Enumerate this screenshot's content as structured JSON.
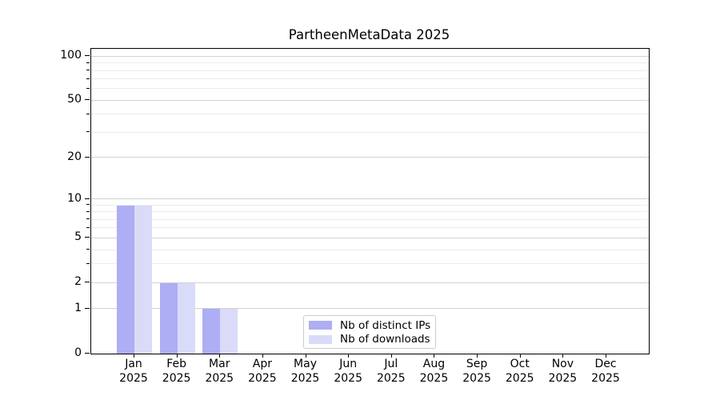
{
  "title": "PartheenMetaData 2025",
  "colors": {
    "distinct_ips": "#adaef4",
    "downloads": "#dadbf9",
    "grid_major": "#d2d2d2",
    "grid_minor": "#ececec",
    "axis": "#000000",
    "legend_border": "#cccccc"
  },
  "legend": {
    "items": [
      {
        "label": "Nb of distinct IPs",
        "color_key": "distinct_ips"
      },
      {
        "label": "Nb of downloads",
        "color_key": "downloads"
      }
    ]
  },
  "chart_data": {
    "type": "bar",
    "title": "PartheenMetaData 2025",
    "scale": "log1p",
    "grid": "both",
    "legend_position": "lower center",
    "year": "2025",
    "months": [
      "Jan",
      "Feb",
      "Mar",
      "Apr",
      "May",
      "Jun",
      "Jul",
      "Aug",
      "Sep",
      "Oct",
      "Nov",
      "Dec"
    ],
    "categories": [
      "Jan 2025",
      "Feb 2025",
      "Mar 2025",
      "Apr 2025",
      "May 2025",
      "Jun 2025",
      "Jul 2025",
      "Aug 2025",
      "Sep 2025",
      "Oct 2025",
      "Nov 2025",
      "Dec 2025"
    ],
    "series": [
      {
        "name": "Nb of distinct IPs",
        "color_key": "distinct_ips",
        "values": [
          9,
          2,
          1,
          0,
          0,
          0,
          0,
          0,
          0,
          0,
          0,
          0
        ]
      },
      {
        "name": "Nb of downloads",
        "color_key": "downloads",
        "values": [
          9,
          2,
          1,
          0,
          0,
          0,
          0,
          0,
          0,
          0,
          0,
          0
        ]
      }
    ],
    "xlabel": "",
    "ylabel": "",
    "ylim": [
      0,
      113
    ],
    "y_major_ticks": [
      0,
      1,
      2,
      5,
      10,
      20,
      50,
      100
    ],
    "y_minor_ticks": [
      3,
      4,
      6,
      7,
      8,
      9,
      30,
      40,
      60,
      70,
      80,
      90
    ]
  }
}
